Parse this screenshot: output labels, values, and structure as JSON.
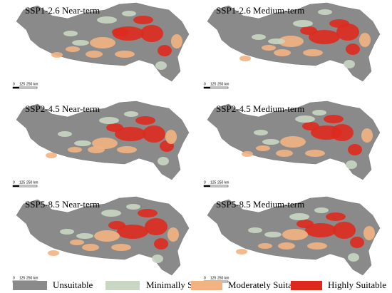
{
  "panels": [
    {
      "title": "SSP1-2.6 Near-term",
      "scale_bar": [
        "0",
        "125",
        "250 km"
      ]
    },
    {
      "title": "SSP1-2.6 Medium-term",
      "scale_bar": [
        "0",
        "125",
        "250 km"
      ]
    },
    {
      "title": "SSP2-4.5 Near-term",
      "scale_bar": [
        "0",
        "125",
        "250 km"
      ]
    },
    {
      "title": "SSP2-4.5 Medium-term",
      "scale_bar": [
        "0",
        "125",
        "250 km"
      ]
    },
    {
      "title": "SSP5-8.5 Near-term",
      "scale_bar": [
        "0",
        "125",
        "250 km"
      ]
    },
    {
      "title": "SSP5-8.5 Medium-term",
      "scale_bar": [
        "0",
        "125",
        "250 km"
      ]
    }
  ],
  "legend": [
    {
      "label": "Unsuitable",
      "color": "#8a8a8a"
    },
    {
      "label": "Minimally Suitable",
      "color": "#c9d6c2"
    },
    {
      "label": "Moderately Suitable",
      "color": "#f2b282"
    },
    {
      "label": "Highly Suitable",
      "color": "#de2a1e"
    }
  ]
}
